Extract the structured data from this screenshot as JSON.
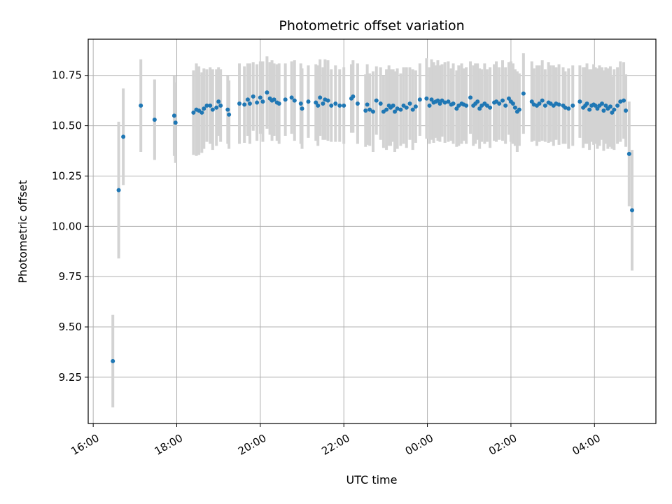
{
  "chart_data": {
    "type": "scatter",
    "title": "Photometric offset variation",
    "xlabel": "UTC time",
    "ylabel": "Photometric offset",
    "x_unit": "hours",
    "xlim": [
      15.88,
      29.47
    ],
    "ylim": [
      9.02,
      10.93
    ],
    "xticks": [
      {
        "value": 16,
        "label": "16:00"
      },
      {
        "value": 18,
        "label": "18:00"
      },
      {
        "value": 20,
        "label": "20:00"
      },
      {
        "value": 22,
        "label": "22:00"
      },
      {
        "value": 24,
        "label": "00:00"
      },
      {
        "value": 26,
        "label": "02:00"
      },
      {
        "value": 28,
        "label": "04:00"
      }
    ],
    "yticks": [
      {
        "value": 9.25,
        "label": "9.25"
      },
      {
        "value": 9.5,
        "label": "9.50"
      },
      {
        "value": 9.75,
        "label": "9.75"
      },
      {
        "value": 10.0,
        "label": "10.00"
      },
      {
        "value": 10.25,
        "label": "10.25"
      },
      {
        "value": 10.5,
        "label": "10.50"
      },
      {
        "value": 10.75,
        "label": "10.75"
      }
    ],
    "grid": true,
    "colors": {
      "point": "#1f77b4",
      "errorbar": "#d3d3d3",
      "grid": "#b0b0b0"
    },
    "points": [
      [
        16.47,
        9.33,
        0.23
      ],
      [
        16.61,
        10.18,
        0.34
      ],
      [
        16.72,
        10.445,
        0.24
      ],
      [
        17.14,
        10.6,
        0.23
      ],
      [
        17.47,
        10.53,
        0.2
      ],
      [
        17.94,
        10.55,
        0.2
      ],
      [
        17.97,
        10.515,
        0.2
      ],
      [
        18.4,
        10.565,
        0.21
      ],
      [
        18.47,
        10.58,
        0.23
      ],
      [
        18.53,
        10.575,
        0.22
      ],
      [
        18.6,
        10.565,
        0.2
      ],
      [
        18.65,
        10.585,
        0.2
      ],
      [
        18.72,
        10.6,
        0.18
      ],
      [
        18.8,
        10.6,
        0.19
      ],
      [
        18.86,
        10.58,
        0.2
      ],
      [
        18.95,
        10.59,
        0.19
      ],
      [
        19.0,
        10.62,
        0.17
      ],
      [
        19.05,
        10.6,
        0.18
      ],
      [
        19.22,
        10.58,
        0.17
      ],
      [
        19.25,
        10.555,
        0.17
      ],
      [
        19.5,
        10.61,
        0.2
      ],
      [
        19.62,
        10.605,
        0.19
      ],
      [
        19.7,
        10.63,
        0.18
      ],
      [
        19.75,
        10.61,
        0.2
      ],
      [
        19.83,
        10.645,
        0.17
      ],
      [
        19.92,
        10.615,
        0.19
      ],
      [
        20.0,
        10.64,
        0.18
      ],
      [
        20.06,
        10.62,
        0.2
      ],
      [
        20.16,
        10.665,
        0.18
      ],
      [
        20.23,
        10.635,
        0.18
      ],
      [
        20.28,
        10.625,
        0.2
      ],
      [
        20.33,
        10.63,
        0.18
      ],
      [
        20.4,
        10.615,
        0.19
      ],
      [
        20.45,
        10.61,
        0.2
      ],
      [
        20.6,
        10.63,
        0.18
      ],
      [
        20.75,
        10.64,
        0.18
      ],
      [
        20.82,
        10.625,
        0.2
      ],
      [
        20.97,
        10.61,
        0.2
      ],
      [
        21.0,
        10.585,
        0.2
      ],
      [
        21.15,
        10.62,
        0.18
      ],
      [
        21.33,
        10.615,
        0.19
      ],
      [
        21.38,
        10.6,
        0.2
      ],
      [
        21.43,
        10.64,
        0.19
      ],
      [
        21.5,
        10.61,
        0.18
      ],
      [
        21.55,
        10.63,
        0.2
      ],
      [
        21.62,
        10.625,
        0.2
      ],
      [
        21.7,
        10.6,
        0.18
      ],
      [
        21.8,
        10.61,
        0.19
      ],
      [
        21.9,
        10.6,
        0.18
      ],
      [
        22.0,
        10.6,
        0.19
      ],
      [
        22.18,
        10.635,
        0.17
      ],
      [
        22.22,
        10.645,
        0.18
      ],
      [
        22.33,
        10.61,
        0.2
      ],
      [
        22.52,
        10.575,
        0.18
      ],
      [
        22.56,
        10.605,
        0.2
      ],
      [
        22.62,
        10.58,
        0.18
      ],
      [
        22.7,
        10.57,
        0.2
      ],
      [
        22.78,
        10.625,
        0.17
      ],
      [
        22.88,
        10.61,
        0.18
      ],
      [
        22.95,
        10.57,
        0.18
      ],
      [
        23.02,
        10.58,
        0.2
      ],
      [
        23.08,
        10.6,
        0.2
      ],
      [
        23.12,
        10.59,
        0.19
      ],
      [
        23.18,
        10.6,
        0.18
      ],
      [
        23.22,
        10.57,
        0.2
      ],
      [
        23.28,
        10.585,
        0.2
      ],
      [
        23.36,
        10.58,
        0.18
      ],
      [
        23.43,
        10.6,
        0.19
      ],
      [
        23.5,
        10.59,
        0.2
      ],
      [
        23.58,
        10.61,
        0.18
      ],
      [
        23.65,
        10.58,
        0.2
      ],
      [
        23.72,
        10.595,
        0.18
      ],
      [
        23.82,
        10.63,
        0.18
      ],
      [
        23.98,
        10.635,
        0.2
      ],
      [
        24.05,
        10.6,
        0.19
      ],
      [
        24.1,
        10.63,
        0.2
      ],
      [
        24.15,
        10.615,
        0.2
      ],
      [
        24.2,
        10.62,
        0.18
      ],
      [
        24.25,
        10.625,
        0.2
      ],
      [
        24.3,
        10.61,
        0.19
      ],
      [
        24.35,
        10.625,
        0.18
      ],
      [
        24.42,
        10.615,
        0.2
      ],
      [
        24.5,
        10.62,
        0.2
      ],
      [
        24.57,
        10.605,
        0.18
      ],
      [
        24.62,
        10.61,
        0.2
      ],
      [
        24.7,
        10.585,
        0.19
      ],
      [
        24.75,
        10.6,
        0.2
      ],
      [
        24.82,
        10.61,
        0.2
      ],
      [
        24.87,
        10.605,
        0.18
      ],
      [
        24.93,
        10.6,
        0.19
      ],
      [
        25.03,
        10.64,
        0.18
      ],
      [
        25.1,
        10.6,
        0.2
      ],
      [
        25.15,
        10.61,
        0.2
      ],
      [
        25.2,
        10.62,
        0.19
      ],
      [
        25.25,
        10.585,
        0.2
      ],
      [
        25.3,
        10.6,
        0.18
      ],
      [
        25.37,
        10.61,
        0.2
      ],
      [
        25.43,
        10.6,
        0.18
      ],
      [
        25.5,
        10.59,
        0.2
      ],
      [
        25.6,
        10.615,
        0.19
      ],
      [
        25.65,
        10.62,
        0.2
      ],
      [
        25.72,
        10.61,
        0.18
      ],
      [
        25.8,
        10.625,
        0.2
      ],
      [
        25.87,
        10.6,
        0.19
      ],
      [
        25.95,
        10.635,
        0.18
      ],
      [
        26.0,
        10.62,
        0.2
      ],
      [
        26.05,
        10.61,
        0.2
      ],
      [
        26.1,
        10.59,
        0.19
      ],
      [
        26.15,
        10.57,
        0.2
      ],
      [
        26.2,
        10.58,
        0.18
      ],
      [
        26.3,
        10.66,
        0.2
      ],
      [
        26.5,
        10.62,
        0.2
      ],
      [
        26.55,
        10.605,
        0.18
      ],
      [
        26.62,
        10.6,
        0.2
      ],
      [
        26.68,
        10.61,
        0.19
      ],
      [
        26.75,
        10.625,
        0.2
      ],
      [
        26.82,
        10.6,
        0.18
      ],
      [
        26.9,
        10.615,
        0.2
      ],
      [
        26.95,
        10.61,
        0.19
      ],
      [
        27.02,
        10.6,
        0.2
      ],
      [
        27.08,
        10.61,
        0.18
      ],
      [
        27.15,
        10.605,
        0.2
      ],
      [
        27.25,
        10.6,
        0.19
      ],
      [
        27.3,
        10.59,
        0.18
      ],
      [
        27.38,
        10.585,
        0.2
      ],
      [
        27.48,
        10.6,
        0.2
      ],
      [
        27.65,
        10.62,
        0.18
      ],
      [
        27.73,
        10.59,
        0.2
      ],
      [
        27.78,
        10.6,
        0.19
      ],
      [
        27.82,
        10.61,
        0.2
      ],
      [
        27.88,
        10.58,
        0.2
      ],
      [
        27.93,
        10.6,
        0.18
      ],
      [
        27.98,
        10.605,
        0.2
      ],
      [
        28.02,
        10.6,
        0.19
      ],
      [
        28.07,
        10.585,
        0.2
      ],
      [
        28.12,
        10.6,
        0.2
      ],
      [
        28.18,
        10.61,
        0.18
      ],
      [
        28.22,
        10.575,
        0.2
      ],
      [
        28.27,
        10.6,
        0.19
      ],
      [
        28.32,
        10.585,
        0.2
      ],
      [
        28.38,
        10.595,
        0.2
      ],
      [
        28.42,
        10.565,
        0.18
      ],
      [
        28.47,
        10.58,
        0.2
      ],
      [
        28.55,
        10.6,
        0.19
      ],
      [
        28.62,
        10.62,
        0.2
      ],
      [
        28.7,
        10.625,
        0.19
      ],
      [
        28.75,
        10.575,
        0.18
      ],
      [
        28.83,
        10.36,
        0.26
      ],
      [
        28.9,
        10.08,
        0.3
      ]
    ]
  }
}
